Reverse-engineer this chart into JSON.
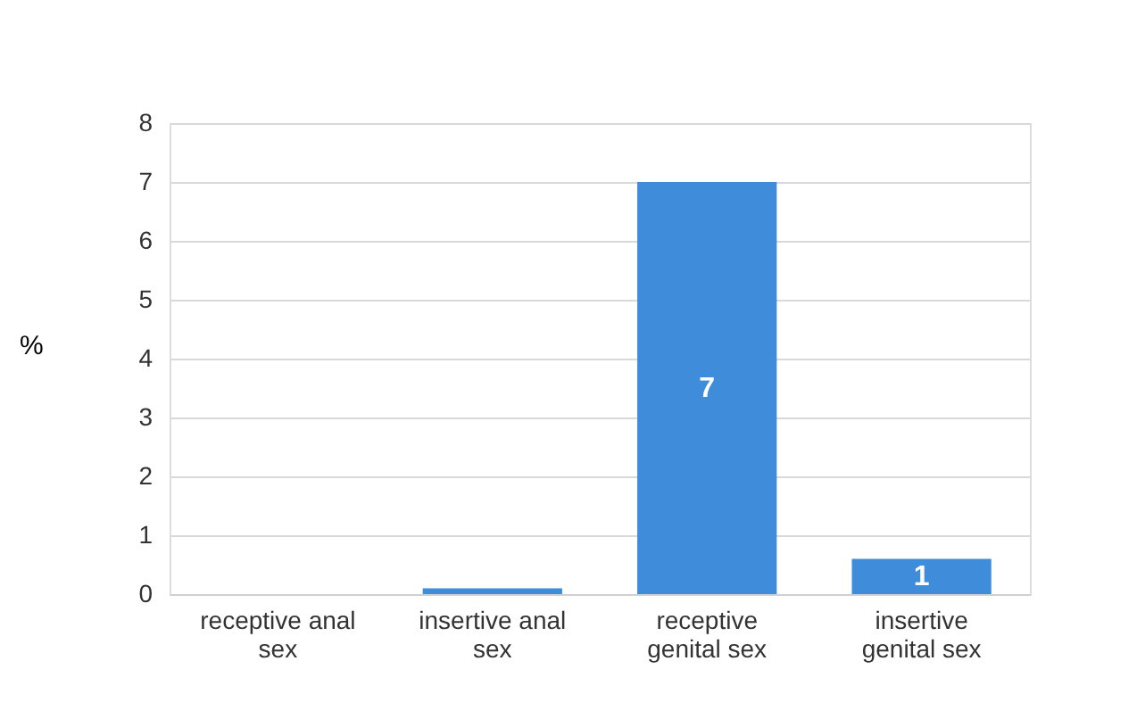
{
  "chart_data": {
    "type": "bar",
    "ylabel": "%",
    "categories": [
      "receptive anal sex",
      "insertive anal sex",
      "receptive genital sex",
      "insertive genital sex"
    ],
    "values": [
      0,
      0.1,
      7,
      0.6
    ],
    "value_labels": [
      null,
      null,
      "7",
      "1"
    ],
    "color": "#3f8cdb",
    "ylim": [
      0,
      8
    ],
    "yticks": [
      0,
      1,
      2,
      3,
      4,
      5,
      6,
      7,
      8
    ],
    "grid": "y"
  }
}
